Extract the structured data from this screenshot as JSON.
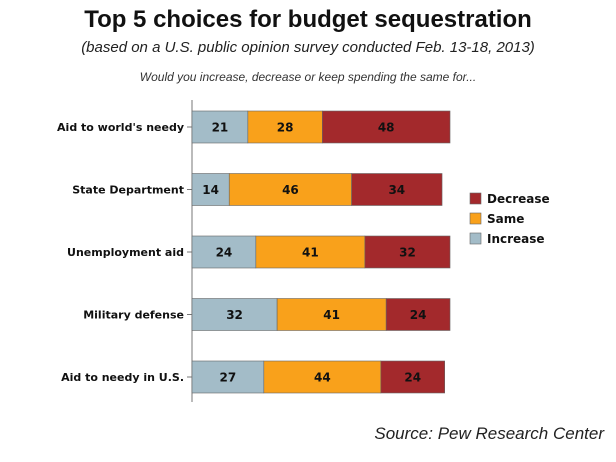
{
  "header": {
    "title": "Top 5 choices for budget sequestration",
    "subtitle": "(based on a U.S. public opinion survey conducted Feb. 13-18, 2013)",
    "question": "Would you increase, decrease or keep spending the same for..."
  },
  "footer": {
    "source": "Source: Pew Research Center"
  },
  "colors": {
    "increase": "#a3bcc8",
    "same": "#f9a11b",
    "decrease": "#a3292c"
  },
  "chart_data": {
    "type": "bar",
    "orientation": "horizontal",
    "stacked": true,
    "title": "Top 5 choices for budget sequestration",
    "subtitle": "(based on a U.S. public opinion survey conducted Feb. 13-18, 2013)",
    "categories": [
      "Aid to world's needy",
      "State Department",
      "Unemployment aid",
      "Military defense",
      "Aid to needy in U.S."
    ],
    "series": [
      {
        "name": "Increase",
        "values": [
          21,
          14,
          24,
          32,
          27
        ]
      },
      {
        "name": "Same",
        "values": [
          28,
          46,
          41,
          41,
          44
        ]
      },
      {
        "name": "Decrease",
        "values": [
          48,
          34,
          32,
          24,
          24
        ]
      }
    ],
    "legend": {
      "position": "right",
      "entries": [
        "Decrease",
        "Same",
        "Increase"
      ]
    },
    "grid": false,
    "xlim": [
      0,
      100
    ]
  }
}
